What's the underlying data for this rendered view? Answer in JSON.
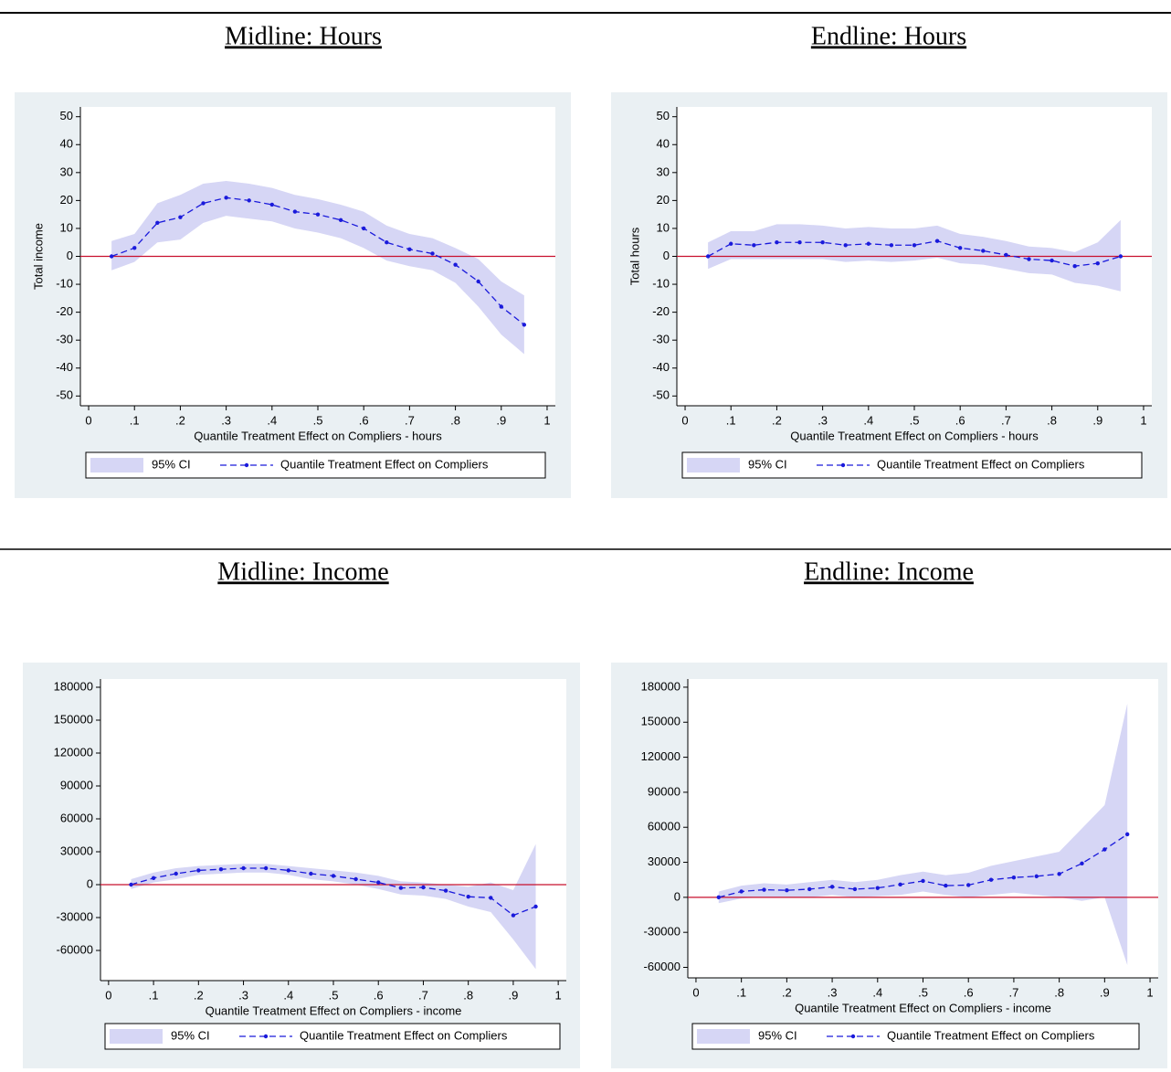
{
  "chart_data": [
    {
      "type": "line",
      "title": "Midline: Hours",
      "ylabel": "Total income",
      "xlabel": "Quantile Treatment Effect on Compliers - hours",
      "x": [
        0.05,
        0.1,
        0.15,
        0.2,
        0.25,
        0.3,
        0.35,
        0.4,
        0.45,
        0.5,
        0.55,
        0.6,
        0.65,
        0.7,
        0.75,
        0.8,
        0.85,
        0.9,
        0.95
      ],
      "xlim": [
        -0.018,
        1.018
      ],
      "xticks": [
        0,
        {
          "value": 0.1,
          "label": ".1"
        },
        {
          "value": 0.2,
          "label": ".2"
        },
        {
          "value": 0.3,
          "label": ".3"
        },
        {
          "value": 0.4,
          "label": ".4"
        },
        {
          "value": 0.5,
          "label": ".5"
        },
        {
          "value": 0.6,
          "label": ".6"
        },
        {
          "value": 0.7,
          "label": ".7"
        },
        {
          "value": 0.8,
          "label": ".8"
        },
        {
          "value": 0.9,
          "label": ".9"
        },
        1
      ],
      "ylim": [
        -53.5,
        53.5
      ],
      "yticks": [
        -50,
        -40,
        -30,
        -20,
        -10,
        0,
        10,
        20,
        30,
        40,
        50
      ],
      "hline": 0,
      "hline_color": "#c8102e",
      "series": [
        {
          "name": "95% CI",
          "type": "band",
          "color": "#d6d6f5",
          "lower": [
            -5,
            -2,
            5,
            6,
            12,
            14.5,
            13.5,
            12.5,
            10,
            8.5,
            6.5,
            3,
            -1.5,
            -3.5,
            -5,
            -9.5,
            -18,
            -28,
            -35
          ],
          "upper": [
            5.5,
            8,
            19,
            22,
            26,
            27,
            26,
            24.5,
            22,
            20.5,
            18.5,
            16,
            11,
            8,
            6.5,
            3,
            -1,
            -9,
            -14
          ]
        },
        {
          "name": "Quantile Treatment Effect on Compliers",
          "type": "line",
          "color": "#1a1adb",
          "values": [
            0,
            3,
            12,
            14,
            19,
            21,
            20,
            18.5,
            16,
            15,
            13,
            10,
            5,
            2.5,
            1,
            -3,
            -9,
            -18,
            -24.5
          ]
        }
      ]
    },
    {
      "type": "line",
      "title": "Endline: Hours",
      "ylabel": "Total hours",
      "xlabel": "Quantile Treatment Effect on Compliers - hours",
      "x": [
        0.05,
        0.1,
        0.15,
        0.2,
        0.25,
        0.3,
        0.35,
        0.4,
        0.45,
        0.5,
        0.55,
        0.6,
        0.65,
        0.7,
        0.75,
        0.8,
        0.85,
        0.9,
        0.95
      ],
      "xlim": [
        -0.018,
        1.018
      ],
      "xticks": [
        0,
        {
          "value": 0.1,
          "label": ".1"
        },
        {
          "value": 0.2,
          "label": ".2"
        },
        {
          "value": 0.3,
          "label": ".3"
        },
        {
          "value": 0.4,
          "label": ".4"
        },
        {
          "value": 0.5,
          "label": ".5"
        },
        {
          "value": 0.6,
          "label": ".6"
        },
        {
          "value": 0.7,
          "label": ".7"
        },
        {
          "value": 0.8,
          "label": ".8"
        },
        {
          "value": 0.9,
          "label": ".9"
        },
        1
      ],
      "ylim": [
        -53.5,
        53.5
      ],
      "yticks": [
        -50,
        -40,
        -30,
        -20,
        -10,
        0,
        10,
        20,
        30,
        40,
        50
      ],
      "hline": 0,
      "hline_color": "#c8102e",
      "series": [
        {
          "name": "95% CI",
          "type": "band",
          "color": "#d6d6f5",
          "lower": [
            -4.5,
            -1,
            -1,
            -1,
            -1,
            -1,
            -2,
            -1.5,
            -2,
            -1.5,
            -0.5,
            -2.5,
            -3,
            -4.5,
            -6,
            -6.5,
            -9.5,
            -10.5,
            -12.5
          ],
          "upper": [
            5,
            9,
            9,
            11.5,
            11.5,
            11,
            10,
            10.5,
            10,
            10,
            11,
            8,
            7,
            5.5,
            3.5,
            3,
            1.5,
            5,
            13
          ]
        },
        {
          "name": "Quantile Treatment Effect on Compliers",
          "type": "line",
          "color": "#1a1adb",
          "values": [
            0,
            4.5,
            4,
            5,
            5,
            5,
            4,
            4.5,
            4,
            4,
            5.5,
            3,
            2,
            0.5,
            -1,
            -1.5,
            -3.5,
            -2.5,
            0
          ]
        }
      ]
    },
    {
      "type": "line",
      "title": "Midline: Income",
      "xlabel": "Quantile Treatment Effect on Compliers - income",
      "x": [
        0.05,
        0.1,
        0.15,
        0.2,
        0.25,
        0.3,
        0.35,
        0.4,
        0.45,
        0.5,
        0.55,
        0.6,
        0.65,
        0.7,
        0.75,
        0.8,
        0.85,
        0.9,
        0.95
      ],
      "xlim": [
        -0.018,
        1.018
      ],
      "xticks": [
        0,
        {
          "value": 0.1,
          "label": ".1"
        },
        {
          "value": 0.2,
          "label": ".2"
        },
        {
          "value": 0.3,
          "label": ".3"
        },
        {
          "value": 0.4,
          "label": ".4"
        },
        {
          "value": 0.5,
          "label": ".5"
        },
        {
          "value": 0.6,
          "label": ".6"
        },
        {
          "value": 0.7,
          "label": ".7"
        },
        {
          "value": 0.8,
          "label": ".8"
        },
        {
          "value": 0.9,
          "label": ".9"
        },
        1
      ],
      "ylim": [
        -87500,
        187500
      ],
      "yticks": [
        -60000,
        -30000,
        0,
        30000,
        60000,
        90000,
        120000,
        150000,
        180000
      ],
      "hline": 0,
      "hline_color": "#c8102e",
      "series": [
        {
          "name": "95% CI",
          "type": "band",
          "color": "#d6d6f5",
          "lower": [
            -4000,
            2000,
            5000,
            9000,
            10000,
            11000,
            11000,
            9000,
            5000,
            3000,
            0,
            -4000,
            -9000,
            -10000,
            -13000,
            -20000,
            -25000,
            -50000,
            -77000
          ],
          "upper": [
            5000,
            11000,
            15000,
            17000,
            18000,
            19000,
            19000,
            17000,
            15000,
            13000,
            11000,
            8000,
            3000,
            2000,
            0,
            -2000,
            2000,
            -5000,
            37000
          ]
        },
        {
          "name": "Quantile Treatment Effect on Compliers",
          "type": "line",
          "color": "#1a1adb",
          "values": [
            0,
            6000,
            10000,
            13000,
            14000,
            15000,
            15000,
            13000,
            10000,
            8000,
            5000,
            2000,
            -3000,
            -2500,
            -5500,
            -11000,
            -12000,
            -28000,
            -20000
          ]
        }
      ]
    },
    {
      "type": "line",
      "title": "Endline: Income",
      "xlabel": "Quantile Treatment Effect on Compliers - income",
      "x": [
        0.05,
        0.1,
        0.15,
        0.2,
        0.25,
        0.3,
        0.35,
        0.4,
        0.45,
        0.5,
        0.55,
        0.6,
        0.65,
        0.7,
        0.75,
        0.8,
        0.85,
        0.9,
        0.95
      ],
      "xlim": [
        -0.018,
        1.018
      ],
      "xticks": [
        0,
        {
          "value": 0.1,
          "label": ".1"
        },
        {
          "value": 0.2,
          "label": ".2"
        },
        {
          "value": 0.3,
          "label": ".3"
        },
        {
          "value": 0.4,
          "label": ".4"
        },
        {
          "value": 0.5,
          "label": ".5"
        },
        {
          "value": 0.6,
          "label": ".6"
        },
        {
          "value": 0.7,
          "label": ".7"
        },
        {
          "value": 0.8,
          "label": ".8"
        },
        {
          "value": 0.9,
          "label": ".9"
        },
        1
      ],
      "ylim": [
        -69000,
        187000
      ],
      "yticks": [
        -60000,
        -30000,
        0,
        30000,
        60000,
        90000,
        120000,
        150000,
        180000
      ],
      "hline": 0,
      "hline_color": "#c8102e",
      "series": [
        {
          "name": "95% CI",
          "type": "band",
          "color": "#d6d6f5",
          "lower": [
            -5000,
            -1000,
            0,
            0,
            0,
            2000,
            0,
            1000,
            2000,
            5000,
            2000,
            0,
            2000,
            4000,
            2000,
            0,
            -3000,
            0,
            -58000
          ],
          "upper": [
            5000,
            10000,
            12000,
            11000,
            13000,
            15000,
            13000,
            15000,
            19000,
            22000,
            19000,
            21000,
            27000,
            31000,
            35000,
            39000,
            59000,
            79000,
            166000
          ]
        },
        {
          "name": "Quantile Treatment Effect on Compliers",
          "type": "line",
          "color": "#1a1adb",
          "values": [
            0,
            5000,
            6500,
            6000,
            7000,
            9000,
            7000,
            8000,
            11000,
            14000,
            10000,
            10500,
            15000,
            17000,
            18000,
            20000,
            29000,
            41000,
            54000
          ]
        }
      ]
    }
  ]
}
